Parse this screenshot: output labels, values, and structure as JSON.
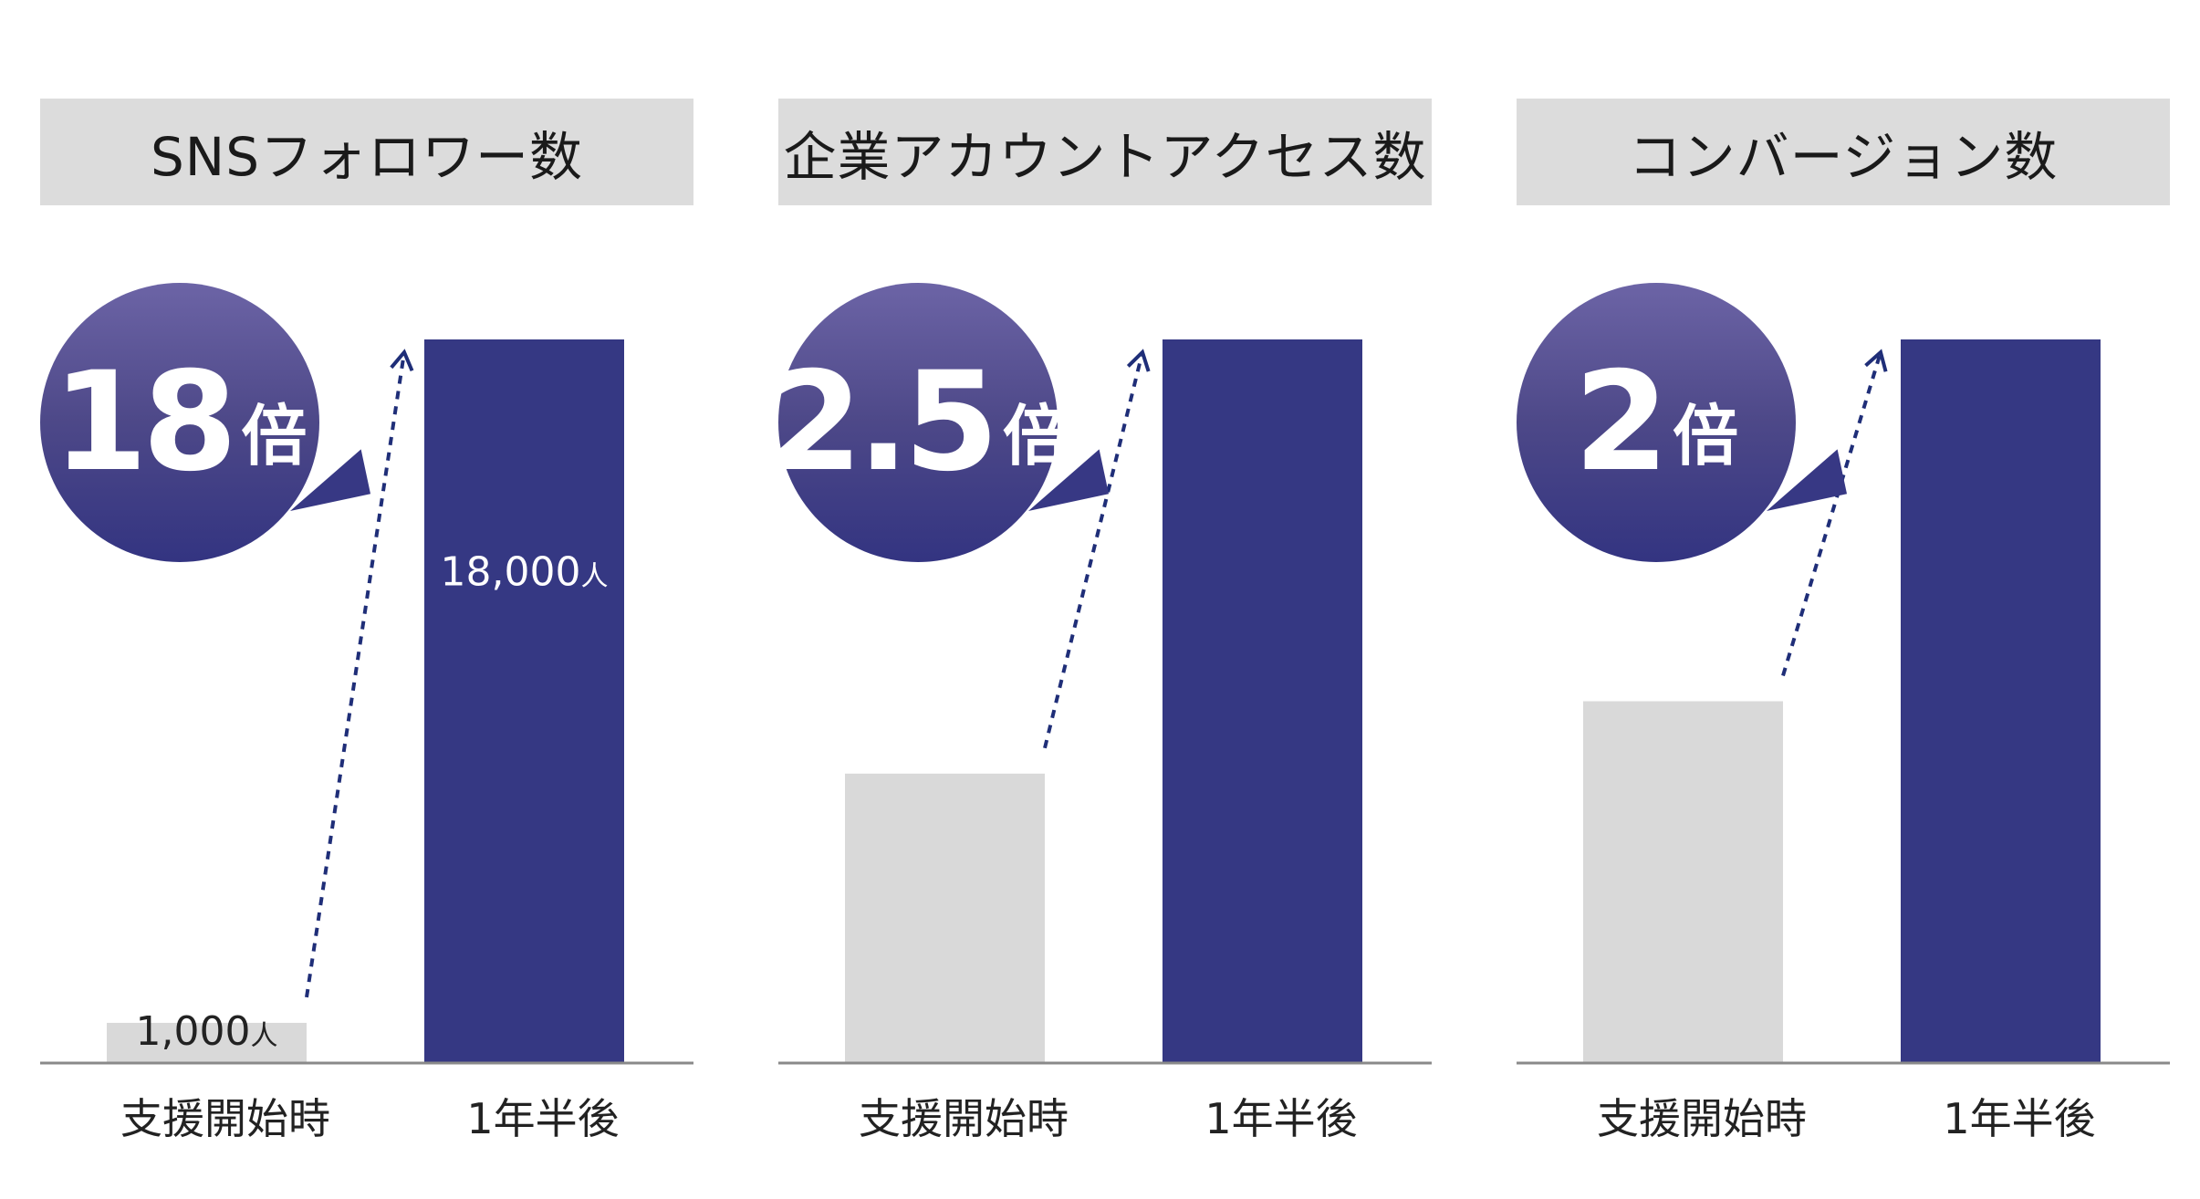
{
  "colors": {
    "before_bar": "#d9d9d9",
    "after_bar": "#353883",
    "title_bg": "#dcdcdc",
    "axis": "#8a8a8a",
    "arrow": "#1f2e78",
    "bubble": "#4d4888"
  },
  "chart_data": [
    {
      "type": "bar",
      "title": "SNSフォロワー数",
      "categories": [
        "支援開始時",
        "1年半後"
      ],
      "values": [
        1000,
        18000
      ],
      "value_labels": [
        "1,000人",
        "18,000人"
      ],
      "ylim": [
        0,
        18000
      ],
      "multiplier_number": "18",
      "multiplier_unit": "倍",
      "grid": false
    },
    {
      "type": "bar",
      "title": "企業アカウントアクセス数",
      "categories": [
        "支援開始時",
        "1年半後"
      ],
      "values": [
        1,
        2.5
      ],
      "value_labels": [
        "",
        ""
      ],
      "ylim": [
        0,
        2.5
      ],
      "multiplier_number": "2.5",
      "multiplier_unit": "倍",
      "grid": false
    },
    {
      "type": "bar",
      "title": "コンバージョン数",
      "categories": [
        "支援開始時",
        "1年半後"
      ],
      "values": [
        1,
        2
      ],
      "value_labels": [
        "",
        ""
      ],
      "ylim": [
        0,
        2
      ],
      "multiplier_number": "2",
      "multiplier_unit": "倍",
      "grid": false
    }
  ]
}
